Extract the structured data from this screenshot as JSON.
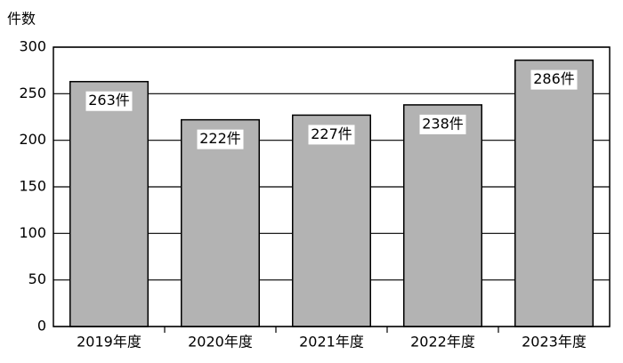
{
  "chart_data": {
    "type": "bar",
    "y_label": "件数",
    "categories": [
      "2019年度",
      "2020年度",
      "2021年度",
      "2022年度",
      "2023年度"
    ],
    "values": [
      263,
      222,
      227,
      238,
      286
    ],
    "value_labels": [
      "263件",
      "222件",
      "227件",
      "238件",
      "286件"
    ],
    "color": "#b3b3b3",
    "ylim": [
      0,
      300
    ],
    "yticks": [
      0,
      50,
      100,
      150,
      200,
      250,
      300
    ],
    "grid": true
  }
}
